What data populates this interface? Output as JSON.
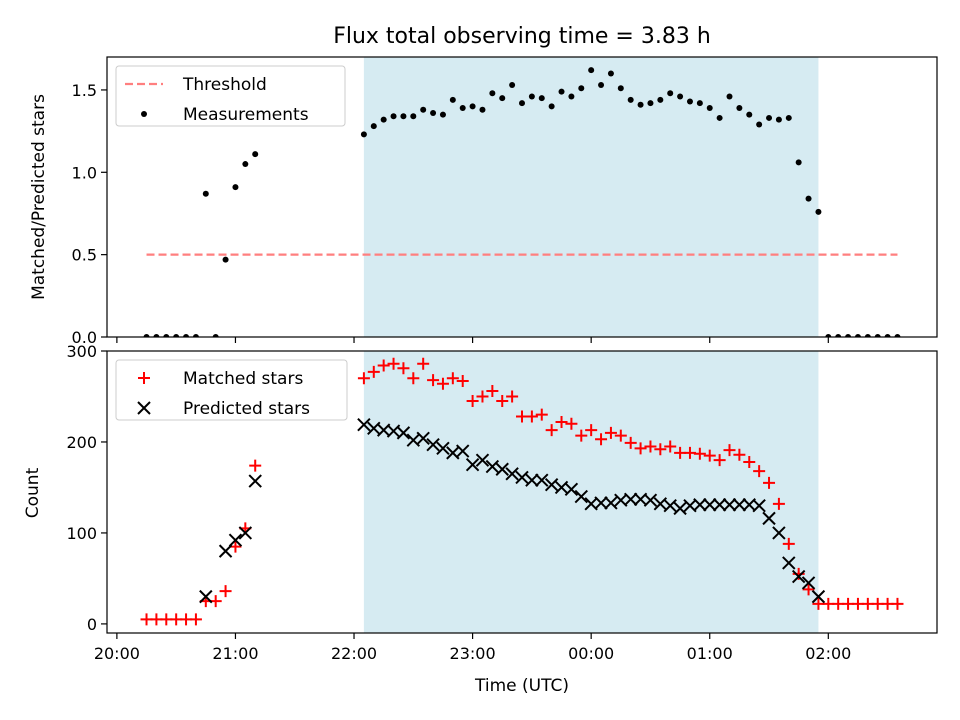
{
  "chart_data": [
    {
      "type": "scatter",
      "title": "Flux total observing time = 3.83 h",
      "xlabel": "",
      "ylabel": "Matched/Predicted stars",
      "xlim": [
        "19:55",
        "02:55"
      ],
      "ylim": [
        0,
        1.7
      ],
      "xticks": [
        "20:00",
        "21:00",
        "22:00",
        "23:00",
        "00:00",
        "01:00",
        "02:00"
      ],
      "yticks": [
        "0.0",
        "0.5",
        "1.0",
        "1.5"
      ],
      "shaded_span": [
        "22:05",
        "01:55"
      ],
      "shade_color": "#add8e6",
      "legend_location": "upper left",
      "series": [
        {
          "name": "Threshold",
          "style": "dashed-line",
          "color": "#ff7f7f",
          "x": [
            "20:15",
            "02:35"
          ],
          "y": [
            0.5,
            0.5
          ]
        },
        {
          "name": "Measurements",
          "style": "dot",
          "color": "#000000",
          "x": [
            "20:15",
            "20:20",
            "20:25",
            "20:30",
            "20:35",
            "20:40",
            "20:45",
            "20:50",
            "20:55",
            "21:00",
            "21:05",
            "21:10",
            "22:05",
            "22:10",
            "22:15",
            "22:20",
            "22:25",
            "22:30",
            "22:35",
            "22:40",
            "22:45",
            "22:50",
            "22:55",
            "23:00",
            "23:05",
            "23:10",
            "23:15",
            "23:20",
            "23:25",
            "23:30",
            "23:35",
            "23:40",
            "23:45",
            "23:50",
            "23:55",
            "00:00",
            "00:05",
            "00:10",
            "00:15",
            "00:20",
            "00:25",
            "00:30",
            "00:35",
            "00:40",
            "00:45",
            "00:50",
            "00:55",
            "01:00",
            "01:05",
            "01:10",
            "01:15",
            "01:20",
            "01:25",
            "01:30",
            "01:35",
            "01:40",
            "01:45",
            "01:50",
            "01:55",
            "02:00",
            "02:05",
            "02:10",
            "02:15",
            "02:20",
            "02:25",
            "02:30",
            "02:35"
          ],
          "y": [
            0,
            0,
            0,
            0,
            0,
            0,
            0.87,
            0,
            0.47,
            0.91,
            1.05,
            1.11,
            1.23,
            1.28,
            1.32,
            1.34,
            1.34,
            1.34,
            1.38,
            1.36,
            1.35,
            1.44,
            1.39,
            1.4,
            1.38,
            1.48,
            1.45,
            1.53,
            1.42,
            1.46,
            1.45,
            1.4,
            1.49,
            1.46,
            1.51,
            1.62,
            1.53,
            1.6,
            1.51,
            1.44,
            1.41,
            1.42,
            1.44,
            1.48,
            1.46,
            1.43,
            1.42,
            1.39,
            1.33,
            1.46,
            1.39,
            1.35,
            1.29,
            1.33,
            1.32,
            1.33,
            1.06,
            0.84,
            0.76,
            0,
            0,
            0,
            0,
            0,
            0,
            0,
            0
          ]
        }
      ]
    },
    {
      "type": "scatter",
      "title": "",
      "xlabel": "Time (UTC)",
      "ylabel": "Count",
      "xlim": [
        "19:55",
        "02:55"
      ],
      "ylim": [
        -10,
        300
      ],
      "xticks": [
        "20:00",
        "21:00",
        "22:00",
        "23:00",
        "00:00",
        "01:00",
        "02:00"
      ],
      "yticks": [
        "0",
        "100",
        "200",
        "300"
      ],
      "shaded_span": [
        "22:05",
        "01:55"
      ],
      "shade_color": "#add8e6",
      "legend_location": "upper left",
      "series": [
        {
          "name": "Matched stars",
          "style": "plus",
          "color": "#ff0000",
          "x": [
            "20:15",
            "20:20",
            "20:25",
            "20:30",
            "20:35",
            "20:40",
            "20:45",
            "20:50",
            "20:55",
            "21:00",
            "21:05",
            "21:10",
            "22:05",
            "22:10",
            "22:15",
            "22:20",
            "22:25",
            "22:30",
            "22:35",
            "22:40",
            "22:45",
            "22:50",
            "22:55",
            "23:00",
            "23:05",
            "23:10",
            "23:15",
            "23:20",
            "23:25",
            "23:30",
            "23:35",
            "23:40",
            "23:45",
            "23:50",
            "23:55",
            "00:00",
            "00:05",
            "00:10",
            "00:15",
            "00:20",
            "00:25",
            "00:30",
            "00:35",
            "00:40",
            "00:45",
            "00:50",
            "00:55",
            "01:00",
            "01:05",
            "01:10",
            "01:15",
            "01:20",
            "01:25",
            "01:30",
            "01:35",
            "01:40",
            "01:45",
            "01:50",
            "01:55",
            "02:00",
            "02:05",
            "02:10",
            "02:15",
            "02:20",
            "02:25",
            "02:30",
            "02:35"
          ],
          "y": [
            5,
            5,
            5,
            5,
            5,
            5,
            25,
            25,
            36,
            85,
            105,
            174,
            270,
            277,
            284,
            286,
            281,
            270,
            286,
            268,
            264,
            270,
            267,
            245,
            250,
            256,
            245,
            250,
            228,
            228,
            230,
            213,
            222,
            220,
            207,
            213,
            203,
            210,
            207,
            199,
            193,
            195,
            192,
            195,
            188,
            188,
            187,
            185,
            180,
            191,
            186,
            178,
            168,
            155,
            132,
            88,
            55,
            38,
            22,
            22,
            22,
            22,
            22,
            22,
            22,
            22,
            22
          ]
        },
        {
          "name": "Predicted stars",
          "style": "x",
          "color": "#000000",
          "x": [
            "20:45",
            "20:55",
            "21:00",
            "21:05",
            "21:10",
            "22:05",
            "22:10",
            "22:15",
            "22:20",
            "22:25",
            "22:30",
            "22:35",
            "22:40",
            "22:45",
            "22:50",
            "22:55",
            "23:00",
            "23:05",
            "23:10",
            "23:15",
            "23:20",
            "23:25",
            "23:30",
            "23:35",
            "23:40",
            "23:45",
            "23:50",
            "23:55",
            "00:00",
            "00:05",
            "00:10",
            "00:15",
            "00:20",
            "00:25",
            "00:30",
            "00:35",
            "00:40",
            "00:45",
            "00:50",
            "00:55",
            "01:00",
            "01:05",
            "01:10",
            "01:15",
            "01:20",
            "01:25",
            "01:30",
            "01:35",
            "01:40",
            "01:45",
            "01:50",
            "01:55"
          ],
          "y": [
            30,
            80,
            92,
            100,
            157,
            219,
            215,
            213,
            212,
            210,
            202,
            204,
            197,
            193,
            188,
            190,
            175,
            180,
            173,
            170,
            165,
            161,
            158,
            158,
            153,
            150,
            148,
            140,
            132,
            133,
            133,
            136,
            137,
            137,
            136,
            132,
            130,
            127,
            130,
            131,
            131,
            131,
            131,
            131,
            131,
            130,
            116,
            100,
            67,
            52,
            45,
            30
          ]
        }
      ]
    }
  ]
}
